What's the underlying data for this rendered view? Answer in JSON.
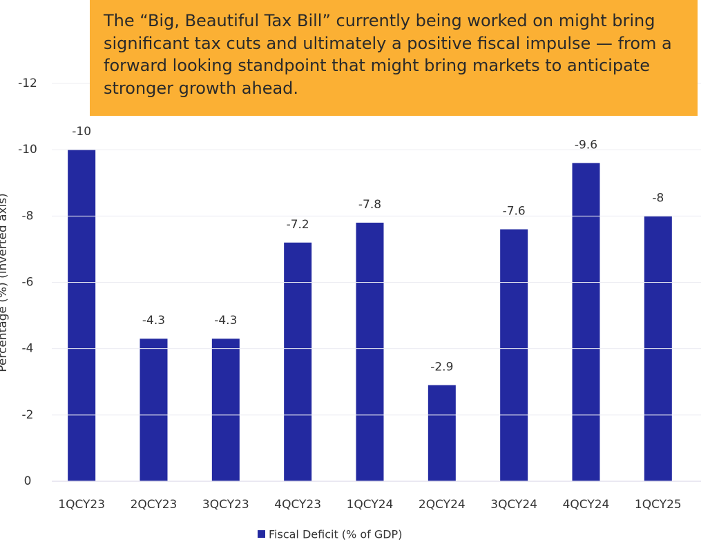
{
  "chart_data": {
    "type": "bar",
    "annotation": "The “Big, Beautiful Tax Bill” currently being worked on might bring significant tax cuts and ultimately a positive fiscal impulse — from a forward looking standpoint that might bring markets to anticipate stronger growth ahead.",
    "y_axis_label": "Percentage (%) (inverted axis)",
    "categories": [
      "1QCY23",
      "2QCY23",
      "3QCY23",
      "4QCY23",
      "1QCY24",
      "2QCY24",
      "3QCY24",
      "4QCY24",
      "1QCY25"
    ],
    "series": [
      {
        "name": "Fiscal Deficit (% of GDP)",
        "color": "#2329a0",
        "values": [
          -10,
          -4.3,
          -4.3,
          -7.2,
          -7.8,
          -2.9,
          -7.6,
          -9.6,
          -8
        ]
      }
    ],
    "ylim": [
      0,
      -12
    ],
    "yticks": [
      0,
      -2,
      -4,
      -6,
      -8,
      -10,
      -12
    ],
    "y_inverted": true,
    "grid": true,
    "legend": "bottom"
  }
}
